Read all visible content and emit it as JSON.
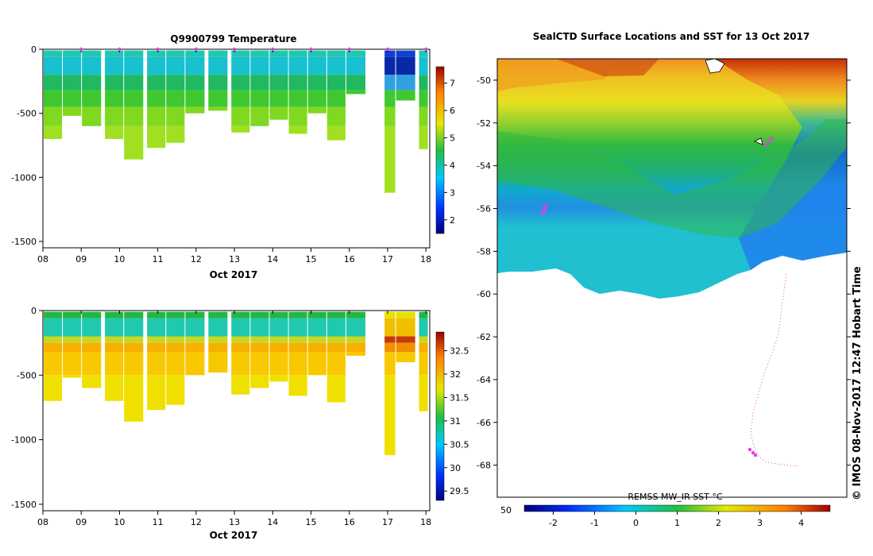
{
  "chart_data": [
    {
      "id": "temperature-section",
      "type": "heatmap",
      "title": "Q9900799  Temperature",
      "xlabel": "Oct 2017",
      "ylabel": "",
      "x_ticks": [
        "08",
        "09",
        "10",
        "11",
        "12",
        "13",
        "14",
        "15",
        "16",
        "17",
        "18"
      ],
      "x_range_days": [
        8,
        18.1
      ],
      "y_ticks": [
        "0",
        "-500",
        "-1000",
        "-1500"
      ],
      "y_range": [
        -1550,
        0
      ],
      "colorbar_ticks": [
        "2",
        "3",
        "4",
        "5",
        "6",
        "7"
      ],
      "colorbar_range": [
        1.5,
        7.6
      ],
      "profile_markers_days": [
        9,
        10,
        11,
        12,
        13,
        14,
        15,
        16,
        17,
        18
      ],
      "marker_color": "#e040e0",
      "profiles_max_depth": [
        {
          "day": 8.2,
          "max_depth": -700
        },
        {
          "day": 8.7,
          "max_depth": -520
        },
        {
          "day": 9.2,
          "max_depth": -600
        },
        {
          "day": 9.8,
          "max_depth": -700
        },
        {
          "day": 10.3,
          "max_depth": -860
        },
        {
          "day": 10.9,
          "max_depth": -770
        },
        {
          "day": 11.4,
          "max_depth": -730
        },
        {
          "day": 11.9,
          "max_depth": -500
        },
        {
          "day": 12.5,
          "max_depth": -480
        },
        {
          "day": 13.1,
          "max_depth": -650
        },
        {
          "day": 13.6,
          "max_depth": -600
        },
        {
          "day": 14.1,
          "max_depth": -550
        },
        {
          "day": 14.6,
          "max_depth": -660
        },
        {
          "day": 15.1,
          "max_depth": -500
        },
        {
          "day": 15.6,
          "max_depth": -710
        },
        {
          "day": 16.1,
          "max_depth": -350
        },
        {
          "day": 17.1,
          "max_depth": -1120
        },
        {
          "day": 17.4,
          "max_depth": -400
        },
        {
          "day": 18.0,
          "max_depth": -780
        }
      ]
    },
    {
      "id": "salinity-section",
      "type": "heatmap",
      "title": "",
      "xlabel": "Oct 2017",
      "ylabel": "",
      "x_ticks": [
        "08",
        "09",
        "10",
        "11",
        "12",
        "13",
        "14",
        "15",
        "16",
        "17",
        "18"
      ],
      "x_range_days": [
        8,
        18.1
      ],
      "y_ticks": [
        "0",
        "-500",
        "-1000",
        "-1500"
      ],
      "y_range": [
        -1550,
        0
      ],
      "colorbar_ticks": [
        "29.5",
        "30",
        "30.5",
        "31",
        "31.5",
        "32",
        "32.5"
      ],
      "colorbar_range": [
        29.3,
        32.9
      ]
    },
    {
      "id": "sst-map",
      "type": "heatmap",
      "title": "SealCTD Surface Locations and SST for 13 Oct 2017",
      "y_ticks": [
        "-50",
        "-52",
        "-54",
        "-56",
        "-58",
        "-60",
        "-62",
        "-64",
        "-66",
        "-68"
      ],
      "lat_range": [
        -69.5,
        -49
      ],
      "colorbar_label": "REMSS MW_IR SST °C",
      "colorbar_ticks": [
        "-2",
        "-1",
        "0",
        "1",
        "2",
        "3",
        "4"
      ],
      "colorbar_range": [
        -2.7,
        4.7
      ],
      "lon_tick_partial": "50",
      "track_color": "#e040e0",
      "credit": "©  IMOS 08-Nov-2017 12:47 Hobart Time"
    }
  ]
}
